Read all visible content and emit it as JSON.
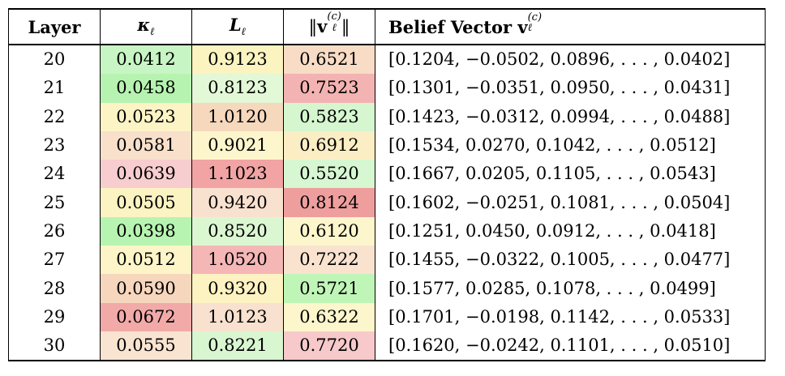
{
  "headers": {
    "layer": "Layer",
    "kappa": "κ",
    "kappa_sub": "ℓ",
    "L": "L",
    "L_sub": "ℓ",
    "norm_left": "‖",
    "norm_v": "v",
    "norm_sup": "(c)",
    "norm_sub": "ℓ",
    "norm_right": "‖",
    "belief": "Belief Vector ",
    "belief_v": "v",
    "belief_sup": "(c)",
    "belief_sub": "ℓ"
  },
  "rows": [
    {
      "layer": "20",
      "kappa": "0.0412",
      "L": "0.9123",
      "norm": "0.6521",
      "vector": "[0.1204, −0.0502, 0.0896, . . . , 0.0402]"
    },
    {
      "layer": "21",
      "kappa": "0.0458",
      "L": "0.8123",
      "norm": "0.7523",
      "vector": "[0.1301, −0.0351, 0.0950, . . . , 0.0431]"
    },
    {
      "layer": "22",
      "kappa": "0.0523",
      "L": "1.0120",
      "norm": "0.5823",
      "vector": "[0.1423, −0.0312, 0.0994, . . . , 0.0488]"
    },
    {
      "layer": "23",
      "kappa": "0.0581",
      "L": "0.9021",
      "norm": "0.6912",
      "vector": "[0.1534, 0.0270, 0.1042, . . . , 0.0512]"
    },
    {
      "layer": "24",
      "kappa": "0.0639",
      "L": "1.1023",
      "norm": "0.5520",
      "vector": "[0.1667, 0.0205, 0.1105, . . . , 0.0543]"
    },
    {
      "layer": "25",
      "kappa": "0.0505",
      "L": "0.9420",
      "norm": "0.8124",
      "vector": "[0.1602, −0.0251, 0.1081, . . . , 0.0504]"
    },
    {
      "layer": "26",
      "kappa": "0.0398",
      "L": "0.8520",
      "norm": "0.6120",
      "vector": "[0.1251, 0.0450, 0.0912, . . . , 0.0418]"
    },
    {
      "layer": "27",
      "kappa": "0.0512",
      "L": "1.0520",
      "norm": "0.7222",
      "vector": "[0.1455, −0.0322, 0.1005, . . . , 0.0477]"
    },
    {
      "layer": "28",
      "kappa": "0.0590",
      "L": "0.9320",
      "norm": "0.5721",
      "vector": "[0.1577, 0.0285, 0.1078, . . . , 0.0499]"
    },
    {
      "layer": "29",
      "kappa": "0.0672",
      "L": "1.0123",
      "norm": "0.6322",
      "vector": "[0.1701, −0.0198, 0.1142, . . . , 0.0533]"
    },
    {
      "layer": "30",
      "kappa": "0.0555",
      "L": "0.8221",
      "norm": "0.7720",
      "vector": "[0.1620, −0.0242, 0.1101, . . . , 0.0510]"
    }
  ],
  "colors": {
    "rows": [
      {
        "kappa": "#c8f5c4",
        "L": "#fbf3c0",
        "norm": "#f8dcc6"
      },
      {
        "kappa": "#b7f3b0",
        "L": "#e3f8d6",
        "norm": "#f3b3b2"
      },
      {
        "kappa": "#fdf4c6",
        "L": "#f6d8bd",
        "norm": "#d5f6cf"
      },
      {
        "kappa": "#f8e0cb",
        "L": "#fdf6cc",
        "norm": "#fbeec4"
      },
      {
        "kappa": "#f8cdcf",
        "L": "#f2a3a3",
        "norm": "#d6f7d1"
      },
      {
        "kappa": "#fcf3c2",
        "L": "#f9e1cf",
        "norm": "#ef9e9e"
      },
      {
        "kappa": "#b8f4b1",
        "L": "#dbf7d2",
        "norm": "#fdf6cc"
      },
      {
        "kappa": "#fdf5c8",
        "L": "#f5b6b6",
        "norm": "#f9e3cf"
      },
      {
        "kappa": "#f6d6bd",
        "L": "#fdf2c1",
        "norm": "#c0f5b8"
      },
      {
        "kappa": "#f2aaa9",
        "L": "#f9e1cf",
        "norm": "#fdf6cc"
      },
      {
        "kappa": "#f9e4d1",
        "L": "#d8f6d0",
        "norm": "#f7c9ca"
      }
    ]
  }
}
